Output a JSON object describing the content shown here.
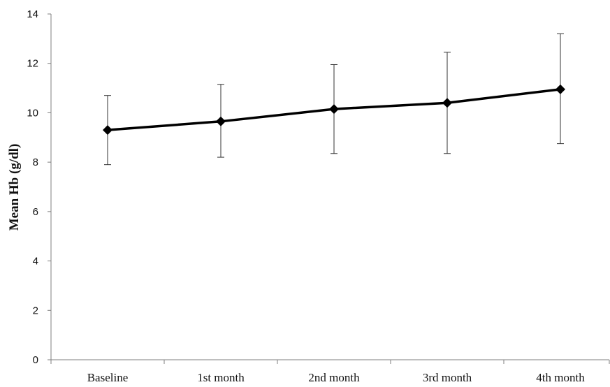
{
  "chart_data": {
    "type": "line",
    "title": "",
    "xlabel": "",
    "ylabel": "Mean Hb (g/dl)",
    "ylim": [
      0,
      14
    ],
    "yticks": [
      "0",
      "2",
      "4",
      "6",
      "8",
      "10",
      "12",
      "14"
    ],
    "categories": [
      "Baseline",
      "1st month",
      "2nd month",
      "3rd month",
      "4th month"
    ],
    "series": [
      {
        "values": [
          9.3,
          9.65,
          10.15,
          10.4,
          10.95
        ],
        "error_low": [
          7.9,
          8.2,
          8.35,
          8.35,
          8.75
        ],
        "error_high": [
          10.7,
          11.15,
          11.95,
          12.45,
          13.2
        ],
        "marker": "diamond",
        "color": "#000000"
      }
    ],
    "grid": false,
    "legend": "none"
  }
}
